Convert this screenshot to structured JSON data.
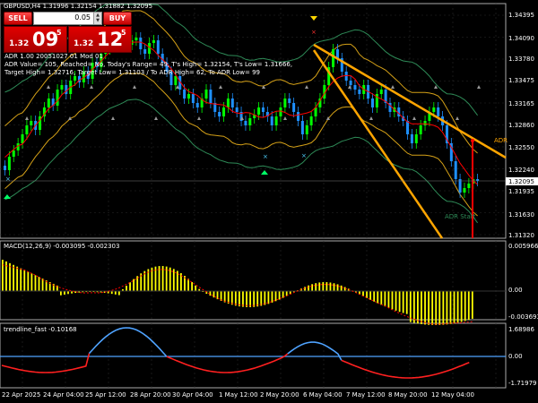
{
  "title": "GBPUSD,H4  1.31996 1.32154 1.31882 1.32095",
  "otp": {
    "sell_label": "SELL",
    "buy_label": "BUY",
    "lot": "0.05",
    "sell_small": "1.32",
    "sell_big": "09",
    "sell_sup": "5",
    "buy_small": "1.32",
    "buy_big": "12",
    "buy_sup": "5"
  },
  "adr_lines": [
    "ADR 1.00 20051027 01 Mod 01",
    "ADR Value= 105, Reached= No, Today's Range= 49, T's High= 1.32154, T's Low= 1.31666,",
    "Target High= 1.32716, Target Low= 1.31103 / To ADR High= 62, To ADR Low= 99"
  ],
  "chart_labels": {
    "adr": "ADR",
    "adr_start": "ADR Start"
  },
  "price_axis": [
    "1.34395",
    "1.34090",
    "1.33780",
    "1.33475",
    "1.33165",
    "1.32860",
    "1.32550",
    "1.32240",
    "1.31935",
    "1.31630",
    "1.31320"
  ],
  "current_price": "1.32095",
  "macd": {
    "label": "MACD(12,26,9) -0.003095 -0.002303",
    "axis": [
      "0.005966",
      "0.00",
      "-0.003693"
    ]
  },
  "trendline": {
    "label": "trendline_fast -0.10168",
    "axis": [
      "1.68986",
      "0.00",
      "-1.71979"
    ]
  },
  "time_axis": [
    "22 Apr 2025",
    "24 Apr 04:00",
    "25 Apr 12:00",
    "28 Apr 20:00",
    "30 Apr 04:00",
    "1 May 12:00",
    "2 May 20:00",
    "6 May 04:00",
    "7 May 12:00",
    "8 May 20:00",
    "12 May 04:00"
  ],
  "colors": {
    "bull": "#00ff00",
    "bear": "#1e90ff",
    "ma": "#ff0000",
    "bands": "#d4a017",
    "outer": "#2e8b57",
    "trend": "#ffa500",
    "macd": "#ffff00",
    "up": "#4fa3ff",
    "down": "#ff2020"
  }
}
